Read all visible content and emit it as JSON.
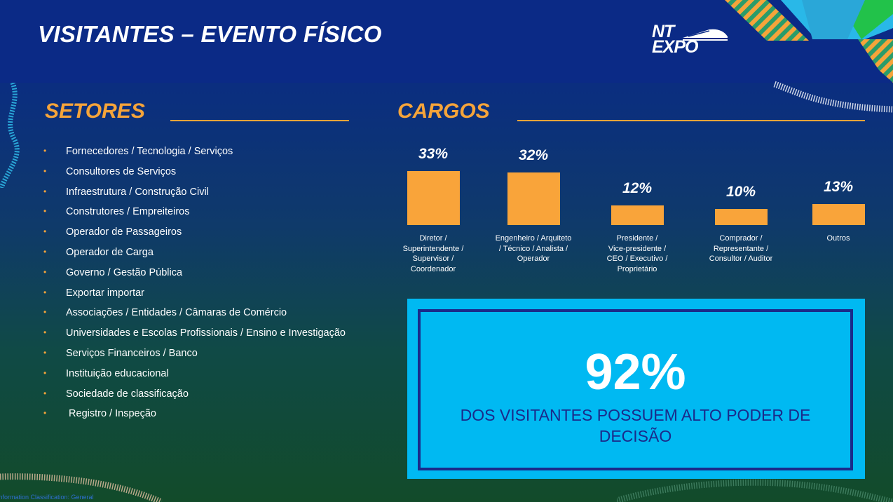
{
  "header": {
    "title": "VISITANTES – EVENTO FÍSICO",
    "logo_line1": "NT",
    "logo_line2": "EXPO"
  },
  "setores": {
    "title": "SETORES",
    "items": [
      "Fornecedores / Tecnologia / Serviços",
      "Consultores de Serviços",
      "Infraestrutura / Construção Civil",
      "Construtores / Empreiteiros",
      "Operador de Passageiros",
      "Operador de Carga",
      "Governo / Gestão Pública",
      "Exportar importar",
      "Associações / Entidades / Câmaras de Comércio",
      "Universidades e Escolas Profissionais / Ensino e Investigação",
      "Serviços Financeiros / Banco",
      "Instituição educacional",
      "Sociedade de classificação",
      " Registro / Inspeção"
    ]
  },
  "cargos": {
    "title": "CARGOS"
  },
  "chart_data": {
    "type": "bar",
    "title": "CARGOS",
    "categories": [
      "Diretor / Superintendente / Supervisor / Coordenador",
      "Engenheiro / Arquiteto / Técnico / Analista / Operador",
      "Presidente / Vice-presidente / CEO / Executivo / Proprietário",
      "Comprador / Representante / Consultor / Auditor",
      "Outros"
    ],
    "category_lines": [
      [
        "Diretor /",
        "Superintendente /",
        "Supervisor /",
        "Coordenador"
      ],
      [
        "Engenheiro / Arquiteto",
        "/ Técnico / Analista /",
        "Operador"
      ],
      [
        "Presidente /",
        "Vice-presidente /",
        "CEO / Executivo /",
        "Proprietário"
      ],
      [
        "Comprador /",
        "Representante /",
        "Consultor / Auditor"
      ],
      [
        "Outros"
      ]
    ],
    "values": [
      33,
      32,
      12,
      10,
      13
    ],
    "value_labels": [
      "33%",
      "32%",
      "12%",
      "10%",
      "13%"
    ],
    "unit": "%",
    "grid": false,
    "legend": "none",
    "bar_color": "#f9a43a"
  },
  "callout": {
    "number": "92%",
    "text": "DOS VISITANTES POSSUEM ALTO PODER DE DECISÃO"
  },
  "footer": {
    "classification": "Information Classification: General"
  },
  "colors": {
    "header_bg": "#0b2a86",
    "accent_orange": "#f6a43a",
    "callout_bg": "#00b9f2",
    "callout_border": "#1a2a8a"
  }
}
